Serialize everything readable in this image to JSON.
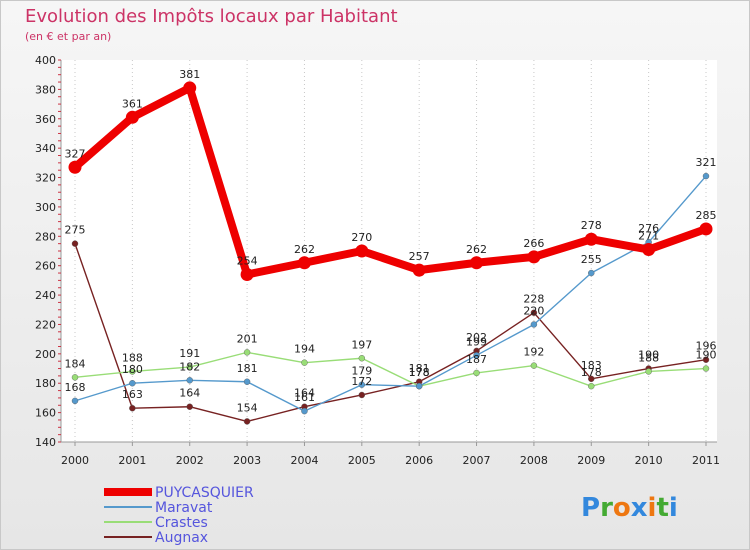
{
  "chart_data": {
    "type": "line",
    "title": "Evolution des Impôts locaux par Habitant",
    "subtitle": "(en € et par an)",
    "categories": [
      "2000",
      "2001",
      "2002",
      "2003",
      "2004",
      "2005",
      "2006",
      "2007",
      "2008",
      "2009",
      "2010",
      "2011"
    ],
    "ylim": [
      140,
      400
    ],
    "yticks": [
      140,
      160,
      180,
      200,
      220,
      240,
      260,
      280,
      300,
      320,
      340,
      360,
      380,
      400
    ],
    "series": [
      {
        "name": "PUYCASQUIER",
        "color": "#ee0000",
        "values": [
          327,
          361,
          381,
          254,
          262,
          270,
          257,
          262,
          266,
          278,
          271,
          285
        ]
      },
      {
        "name": "Maravat",
        "color": "#5599cc",
        "values": [
          168,
          180,
          182,
          181,
          161,
          179,
          178,
          199,
          220,
          255,
          276,
          321
        ]
      },
      {
        "name": "Crastes",
        "color": "#99dd77",
        "values": [
          184,
          188,
          191,
          201,
          194,
          197,
          178,
          187,
          192,
          178,
          188,
          190
        ]
      },
      {
        "name": "Augnax",
        "color": "#772222",
        "values": [
          275,
          163,
          164,
          154,
          164,
          172,
          181,
          202,
          228,
          183,
          190,
          196
        ]
      }
    ]
  },
  "logo": {
    "text": "Proxiti"
  }
}
